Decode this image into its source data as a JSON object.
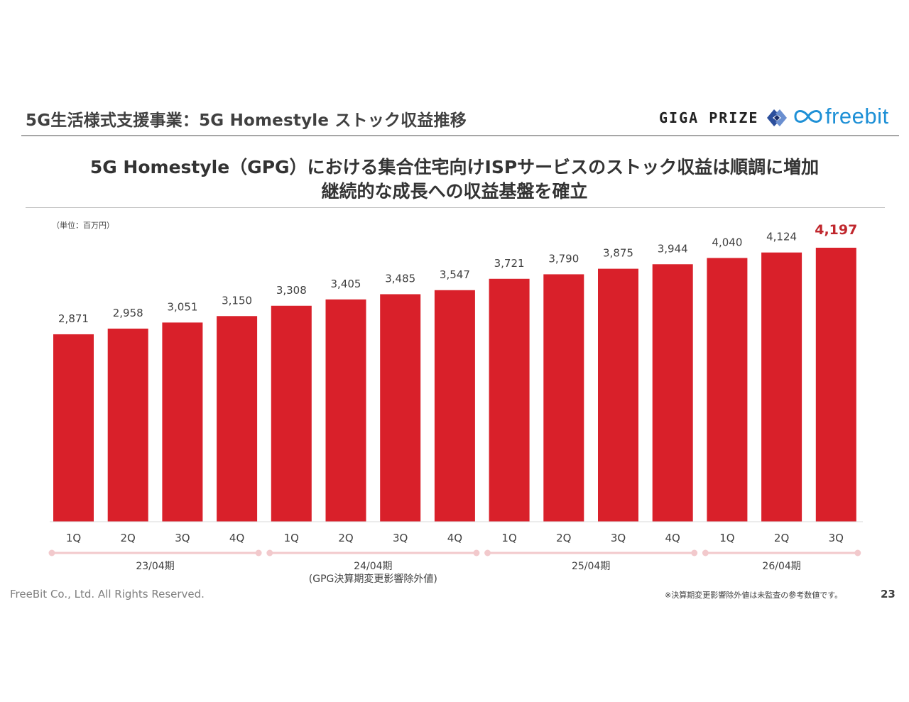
{
  "header": {
    "title": "5G生活様式支援事業：5G Homestyle ストック収益推移"
  },
  "logos": {
    "gigaprize": "GIGA PRIZE",
    "freebit": "freebit"
  },
  "headline": {
    "line1": "5G Homestyle（GPG）における集合住宅向けISPサービスのストック収益は順調に増加",
    "line2": "継続的な成長への収益基盤を確立"
  },
  "colors": {
    "bar": "#d9202a",
    "highlight_label": "#c0272d",
    "period_line": "#f2c9cc",
    "accent_brand": "#1e90d6"
  },
  "chart_data": {
    "type": "bar",
    "unit_label": "（単位：百万円）",
    "categories": [
      "1Q",
      "2Q",
      "3Q",
      "4Q",
      "1Q",
      "2Q",
      "3Q",
      "4Q",
      "1Q",
      "2Q",
      "3Q",
      "4Q",
      "1Q",
      "2Q",
      "3Q"
    ],
    "values": [
      2871,
      2958,
      3051,
      3150,
      3308,
      3405,
      3485,
      3547,
      3721,
      3790,
      3875,
      3944,
      4040,
      4124,
      4197
    ],
    "labels": [
      "2,871",
      "2,958",
      "3,051",
      "3,150",
      "3,308",
      "3,405",
      "3,485",
      "3,547",
      "3,721",
      "3,790",
      "3,875",
      "3,944",
      "4,040",
      "4,124",
      "4,197"
    ],
    "highlight_index": 14,
    "ylim": [
      0,
      4197
    ],
    "groups": [
      {
        "label": "23/04期",
        "sublabel": "",
        "start": 0,
        "end": 3
      },
      {
        "label": "24/04期",
        "sublabel": "(GPG決算期変更影響除外値)",
        "start": 4,
        "end": 7
      },
      {
        "label": "25/04期",
        "sublabel": "",
        "start": 8,
        "end": 11
      },
      {
        "label": "26/04期",
        "sublabel": "",
        "start": 12,
        "end": 14
      }
    ]
  },
  "footer": {
    "copyright": "FreeBit Co., Ltd. All Rights Reserved.",
    "note": "※決算期変更影響除外値は未監査の参考数値です。",
    "page": "23"
  }
}
